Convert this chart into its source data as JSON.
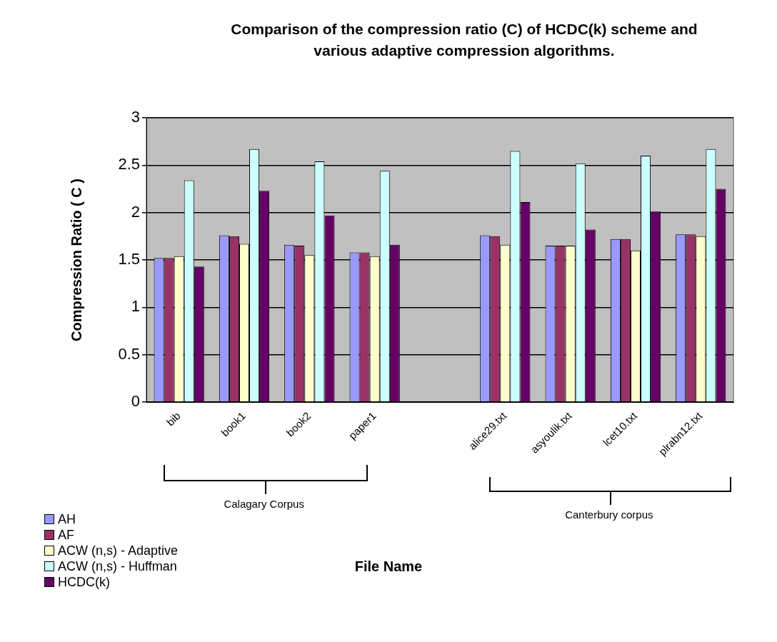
{
  "chart_data": {
    "type": "bar",
    "title": "Comparison of the compression ratio (C) of HCDC(k) scheme and various  adaptive compression algorithms.",
    "ylabel": "Compression Ratio ( C )",
    "categories": [
      "bib",
      "book1",
      "book2",
      "paper1",
      null,
      "alice29.txt",
      "asyoulik.txt",
      "lcet10.txt",
      "plrabn12.txt"
    ],
    "series": [
      {
        "name": "AH",
        "color": "#9999ff",
        "values": [
          1.52,
          1.76,
          1.66,
          1.58,
          null,
          1.76,
          1.65,
          1.72,
          1.77
        ]
      },
      {
        "name": "AF",
        "color": "#993366",
        "values": [
          1.52,
          1.75,
          1.65,
          1.58,
          null,
          1.75,
          1.65,
          1.72,
          1.77
        ]
      },
      {
        "name": "ACW (n,s) - Adaptive",
        "color": "#ffffcc",
        "values": [
          1.54,
          1.67,
          1.55,
          1.54,
          null,
          1.66,
          1.65,
          1.6,
          1.75
        ]
      },
      {
        "name": "ACW (n,s) - Huffman",
        "color": "#ccffff",
        "values": [
          2.34,
          2.67,
          2.54,
          2.44,
          null,
          2.65,
          2.52,
          2.6,
          2.67
        ]
      },
      {
        "name": "HCDC(k)",
        "color": "#660066",
        "values": [
          1.43,
          2.23,
          1.97,
          1.66,
          null,
          2.11,
          1.82,
          2.01,
          2.25
        ]
      }
    ],
    "ylim": [
      0,
      3
    ],
    "yticks": [
      0,
      0.5,
      1,
      1.5,
      2,
      2.5,
      3
    ],
    "grid": "y",
    "legend": "bottom left",
    "annotations": [
      "Calagary Corpus",
      "Canterbury corpus",
      "File Name"
    ]
  }
}
